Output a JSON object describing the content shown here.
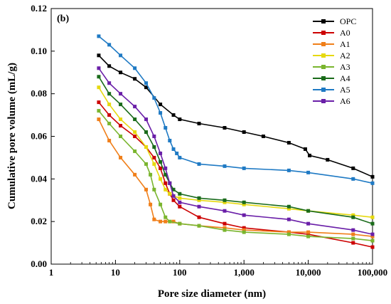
{
  "chart_data": {
    "type": "line",
    "panel_label": "(b)",
    "xlabel": "Pore size diameter (nm)",
    "ylabel": "Cumulative pore volume (mL/g)",
    "x_scale": "log",
    "xlim": [
      1,
      100000
    ],
    "ylim": [
      0,
      0.12
    ],
    "x_ticks": [
      1,
      10,
      100,
      1000,
      10000,
      100000
    ],
    "x_tick_labels": [
      "1",
      "10",
      "100",
      "1,000",
      "10,000",
      "100,000"
    ],
    "y_ticks": [
      0,
      0.02,
      0.04,
      0.06,
      0.08,
      0.1,
      0.12
    ],
    "y_tick_labels": [
      "0.00",
      "0.02",
      "0.04",
      "0.06",
      "0.08",
      "0.10",
      "0.12"
    ],
    "legend_position": "top-right",
    "series": [
      {
        "name": "OPC",
        "color": "#000000",
        "x": [
          5.5,
          8,
          12,
          20,
          30,
          50,
          80,
          100,
          200,
          500,
          1000,
          2000,
          5000,
          9000,
          10500,
          20000,
          50000,
          100000
        ],
        "y": [
          0.098,
          0.093,
          0.09,
          0.087,
          0.083,
          0.075,
          0.07,
          0.068,
          0.066,
          0.064,
          0.062,
          0.06,
          0.057,
          0.054,
          0.051,
          0.049,
          0.045,
          0.041
        ]
      },
      {
        "name": "A0",
        "color": "#cc0000",
        "x": [
          5.5,
          8,
          12,
          20,
          30,
          40,
          50,
          60,
          70,
          80,
          100,
          200,
          500,
          1000,
          5000,
          10000,
          50000,
          100000
        ],
        "y": [
          0.076,
          0.07,
          0.065,
          0.06,
          0.055,
          0.05,
          0.045,
          0.038,
          0.033,
          0.03,
          0.027,
          0.022,
          0.019,
          0.017,
          0.015,
          0.014,
          0.01,
          0.008
        ]
      },
      {
        "name": "A1",
        "color": "#f07f1a",
        "x": [
          5.5,
          8,
          12,
          20,
          30,
          35,
          40,
          50,
          60,
          80,
          100,
          200,
          500,
          1000,
          5000,
          10000,
          50000,
          100000
        ],
        "y": [
          0.068,
          0.058,
          0.05,
          0.042,
          0.035,
          0.028,
          0.021,
          0.02,
          0.02,
          0.02,
          0.019,
          0.018,
          0.017,
          0.016,
          0.015,
          0.015,
          0.014,
          0.013
        ]
      },
      {
        "name": "A2",
        "color": "#e6d90f",
        "x": [
          5.5,
          8,
          12,
          20,
          30,
          40,
          50,
          60,
          70,
          80,
          100,
          200,
          500,
          1000,
          5000,
          10000,
          50000,
          100000
        ],
        "y": [
          0.083,
          0.075,
          0.068,
          0.062,
          0.055,
          0.047,
          0.04,
          0.035,
          0.033,
          0.032,
          0.031,
          0.03,
          0.029,
          0.028,
          0.026,
          0.025,
          0.023,
          0.022
        ]
      },
      {
        "name": "A3",
        "color": "#7ab52e",
        "x": [
          5.5,
          8,
          12,
          20,
          30,
          35,
          40,
          50,
          60,
          70,
          100,
          200,
          500,
          1000,
          5000,
          10000,
          50000,
          100000
        ],
        "y": [
          0.072,
          0.066,
          0.06,
          0.053,
          0.047,
          0.042,
          0.035,
          0.028,
          0.022,
          0.02,
          0.019,
          0.018,
          0.016,
          0.015,
          0.014,
          0.013,
          0.012,
          0.011
        ]
      },
      {
        "name": "A4",
        "color": "#1a6b1a",
        "x": [
          5.5,
          8,
          12,
          20,
          30,
          40,
          50,
          60,
          70,
          80,
          100,
          200,
          500,
          1000,
          5000,
          10000,
          50000,
          100000
        ],
        "y": [
          0.088,
          0.08,
          0.075,
          0.068,
          0.062,
          0.055,
          0.048,
          0.042,
          0.038,
          0.035,
          0.033,
          0.031,
          0.03,
          0.029,
          0.027,
          0.025,
          0.022,
          0.019
        ]
      },
      {
        "name": "A5",
        "color": "#1f7ac4",
        "x": [
          5.5,
          8,
          12,
          20,
          30,
          40,
          50,
          60,
          70,
          80,
          90,
          100,
          200,
          500,
          1000,
          5000,
          10000,
          50000,
          100000
        ],
        "y": [
          0.107,
          0.103,
          0.098,
          0.092,
          0.085,
          0.078,
          0.071,
          0.064,
          0.058,
          0.054,
          0.052,
          0.05,
          0.047,
          0.046,
          0.045,
          0.044,
          0.043,
          0.04,
          0.038
        ]
      },
      {
        "name": "A6",
        "color": "#6a1fa8",
        "x": [
          5.5,
          8,
          12,
          20,
          30,
          40,
          50,
          60,
          70,
          80,
          100,
          200,
          500,
          1000,
          5000,
          10000,
          50000,
          100000
        ],
        "y": [
          0.092,
          0.085,
          0.08,
          0.074,
          0.068,
          0.06,
          0.052,
          0.045,
          0.038,
          0.032,
          0.029,
          0.027,
          0.025,
          0.023,
          0.021,
          0.019,
          0.016,
          0.014
        ]
      }
    ]
  }
}
